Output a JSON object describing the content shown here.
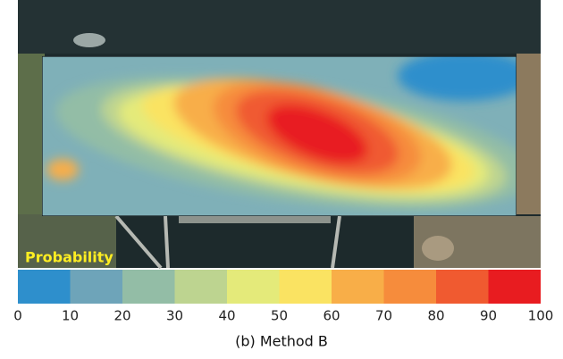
{
  "legend": {
    "title": "Probability",
    "ticks": [
      0,
      10,
      20,
      30,
      40,
      50,
      60,
      70,
      80,
      90,
      100
    ],
    "colors": [
      "#2e8fcc",
      "#6ea4b9",
      "#93bda6",
      "#bdd490",
      "#e4ea7a",
      "#fae362",
      "#f8ae48",
      "#f68c3c",
      "#f05a30",
      "#e81c20"
    ]
  },
  "caption": "(b) Method B"
}
